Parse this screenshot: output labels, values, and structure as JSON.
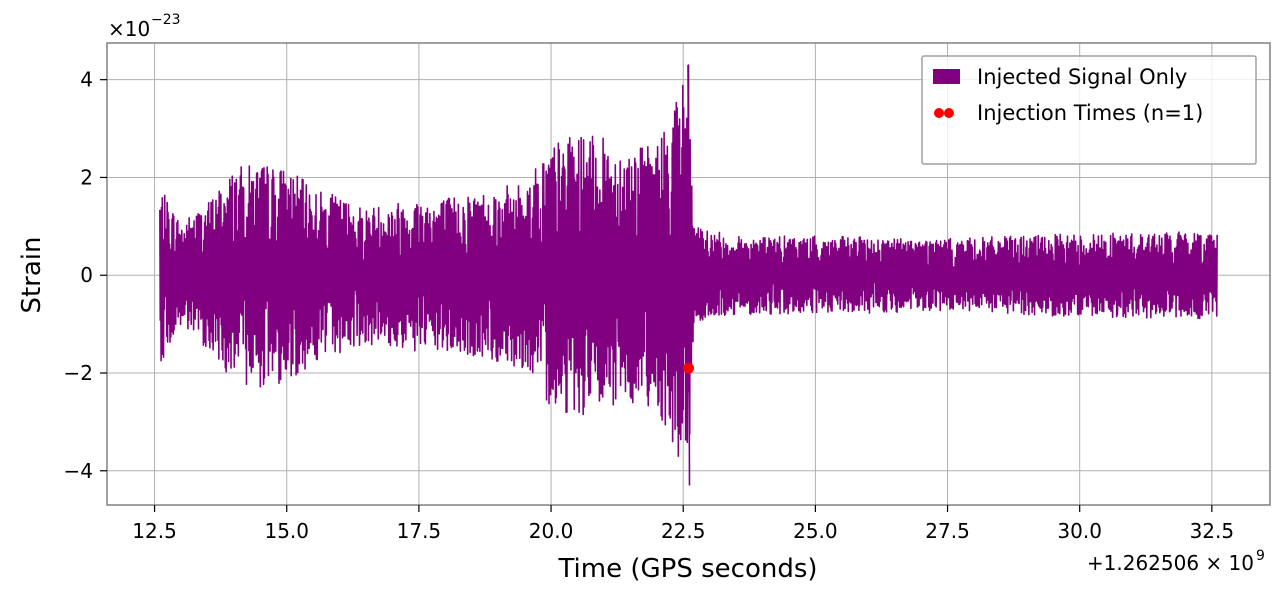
{
  "chart_data": {
    "type": "line",
    "xlabel": "Time (GPS seconds)",
    "ylabel": "Strain",
    "x_offset_label": "+1.262506 × 10",
    "x_offset_exp": "9",
    "y_scale_label": "×10",
    "y_scale_exp": "−23",
    "xlim": [
      11.6,
      33.6
    ],
    "ylim": [
      -4.7,
      4.75
    ],
    "x_ticks": [
      12.5,
      15.0,
      17.5,
      20.0,
      22.5,
      25.0,
      27.5,
      30.0,
      32.5
    ],
    "x_tick_labels": [
      "12.5",
      "15.0",
      "17.5",
      "20.0",
      "22.5",
      "25.0",
      "27.5",
      "30.0",
      "32.5"
    ],
    "y_ticks": [
      -4,
      -2,
      0,
      2,
      4
    ],
    "y_tick_labels": [
      "−4",
      "−2",
      "0",
      "2",
      "4"
    ],
    "grid": true,
    "legend_position": "top-right",
    "series": [
      {
        "name": "Injected Signal Only",
        "kind": "line",
        "color": "#800080",
        "t_start": 12.6,
        "t_end": 32.6,
        "envelope": [
          [
            12.6,
            1.8
          ],
          [
            13.0,
            1.1
          ],
          [
            13.5,
            1.5
          ],
          [
            14.0,
            2.2
          ],
          [
            14.5,
            2.3
          ],
          [
            15.0,
            2.2
          ],
          [
            15.5,
            1.8
          ],
          [
            16.0,
            1.6
          ],
          [
            16.5,
            1.4
          ],
          [
            17.0,
            1.5
          ],
          [
            17.5,
            1.6
          ],
          [
            18.0,
            1.6
          ],
          [
            18.5,
            1.7
          ],
          [
            19.0,
            1.8
          ],
          [
            19.5,
            1.9
          ],
          [
            20.0,
            2.7
          ],
          [
            20.5,
            2.9
          ],
          [
            21.0,
            2.8
          ],
          [
            21.5,
            2.6
          ],
          [
            22.0,
            2.7
          ],
          [
            22.6,
            4.3
          ],
          [
            22.7,
            1.0
          ],
          [
            23.5,
            0.8
          ],
          [
            25.0,
            0.8
          ],
          [
            27.5,
            0.75
          ],
          [
            30.0,
            0.85
          ],
          [
            32.6,
            0.9
          ]
        ],
        "peak_time": 22.6,
        "peak_max": 4.3,
        "peak_min": -4.3
      },
      {
        "name": "Injection Times (n=1)",
        "kind": "scatter",
        "color": "#ff0000",
        "points": [
          [
            22.6,
            -1.9
          ]
        ]
      }
    ]
  }
}
